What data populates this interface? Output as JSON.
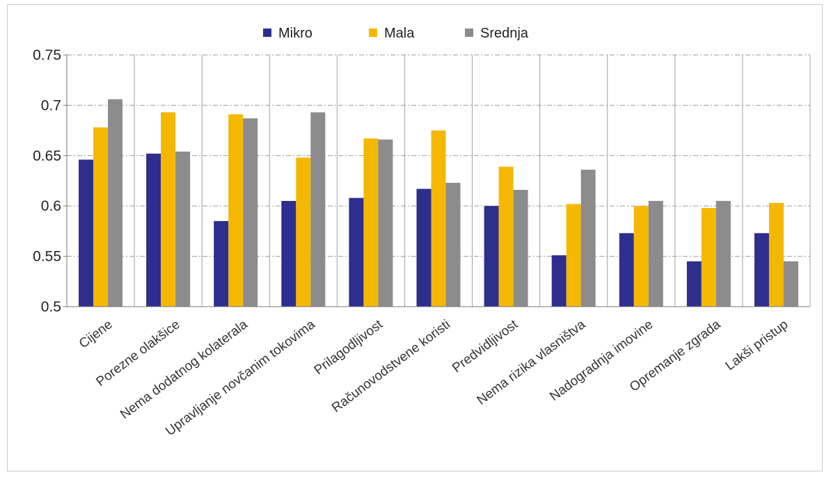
{
  "chart_data": {
    "type": "bar",
    "categories": [
      "Cijene",
      "Porezne olakšice",
      "Nema dodatnog kolaterala",
      "Upravljanje novčanim tokovima",
      "Prilagodljivost",
      "Računovodstvene koristi",
      "Predvidljivost",
      "Nema rizika vlasništva",
      "Nadogradnja imovine",
      "Opremanje zgrada",
      "Lakši pristup"
    ],
    "series": [
      {
        "name": "Mikro",
        "color": "#2e2e8f",
        "values": [
          0.646,
          0.652,
          0.585,
          0.605,
          0.608,
          0.617,
          0.6,
          0.551,
          0.573,
          0.545,
          0.573
        ]
      },
      {
        "name": "Mala",
        "color": "#f5b800",
        "values": [
          0.678,
          0.693,
          0.691,
          0.648,
          0.667,
          0.675,
          0.639,
          0.602,
          0.6,
          0.598,
          0.603
        ]
      },
      {
        "name": "Srednja",
        "color": "#8c8c8c",
        "values": [
          0.706,
          0.654,
          0.687,
          0.693,
          0.666,
          0.623,
          0.616,
          0.636,
          0.605,
          0.605,
          0.545
        ]
      }
    ],
    "y_ticks": [
      "0.5",
      "0.55",
      "0.6",
      "0.65",
      "0.7",
      "0.75"
    ],
    "ylim": [
      0.5,
      0.75
    ],
    "grid": true,
    "legend_position": "top-center",
    "title": "",
    "xlabel": "",
    "ylabel": ""
  }
}
